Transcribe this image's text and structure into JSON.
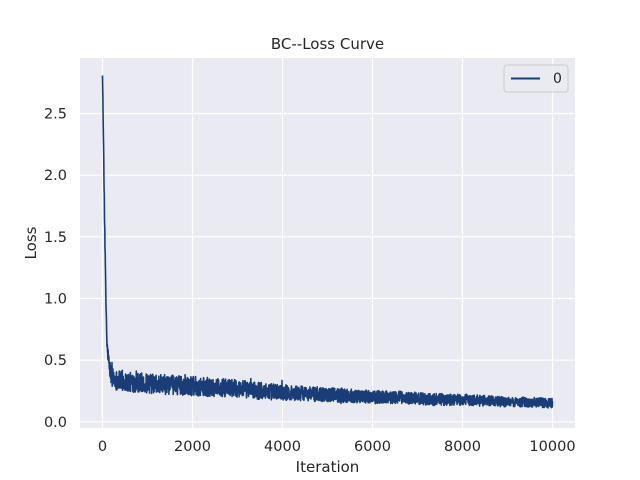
{
  "colors": {
    "background": "#eaeaf2",
    "grid": "#ffffff",
    "series": "#1a3d78",
    "text": "#262626"
  },
  "chart_data": {
    "type": "line",
    "title": "BC--Loss Curve",
    "xlabel": "Iteration",
    "ylabel": "Loss",
    "xlim": [
      -500,
      10500
    ],
    "ylim": [
      -0.05,
      2.95
    ],
    "xticks": [
      0,
      2000,
      4000,
      6000,
      8000,
      10000
    ],
    "xtick_labels": [
      "0",
      "2000",
      "4000",
      "6000",
      "8000",
      "10000"
    ],
    "yticks": [
      0.0,
      0.5,
      1.0,
      1.5,
      2.0,
      2.5
    ],
    "ytick_labels": [
      "0.0",
      "0.5",
      "1.0",
      "1.5",
      "2.0",
      "2.5"
    ],
    "grid": true,
    "legend": {
      "position": "top-right",
      "entries": [
        "0"
      ]
    },
    "series": [
      {
        "name": "0",
        "color": "#1a3d78",
        "x": [
          0,
          25,
          50,
          75,
          100,
          150,
          200,
          300,
          400,
          600,
          800,
          1000,
          1500,
          2000,
          2500,
          3000,
          3500,
          4000,
          4500,
          5000,
          5500,
          6000,
          6500,
          7000,
          7500,
          8000,
          8500,
          9000,
          9500,
          10000
        ],
        "y": [
          2.8,
          2.2,
          1.55,
          1.0,
          0.62,
          0.45,
          0.37,
          0.34,
          0.33,
          0.32,
          0.32,
          0.31,
          0.3,
          0.29,
          0.28,
          0.27,
          0.25,
          0.24,
          0.23,
          0.22,
          0.21,
          0.2,
          0.2,
          0.19,
          0.18,
          0.18,
          0.17,
          0.16,
          0.16,
          0.15
        ],
        "noise_amplitude": [
          0.05,
          0.05,
          0.05,
          0.05,
          0.05,
          0.07,
          0.08,
          0.08,
          0.08,
          0.08,
          0.08,
          0.08,
          0.08,
          0.08,
          0.075,
          0.07,
          0.07,
          0.065,
          0.06,
          0.06,
          0.055,
          0.055,
          0.05,
          0.05,
          0.05,
          0.045,
          0.045,
          0.04,
          0.04,
          0.04
        ]
      }
    ]
  }
}
